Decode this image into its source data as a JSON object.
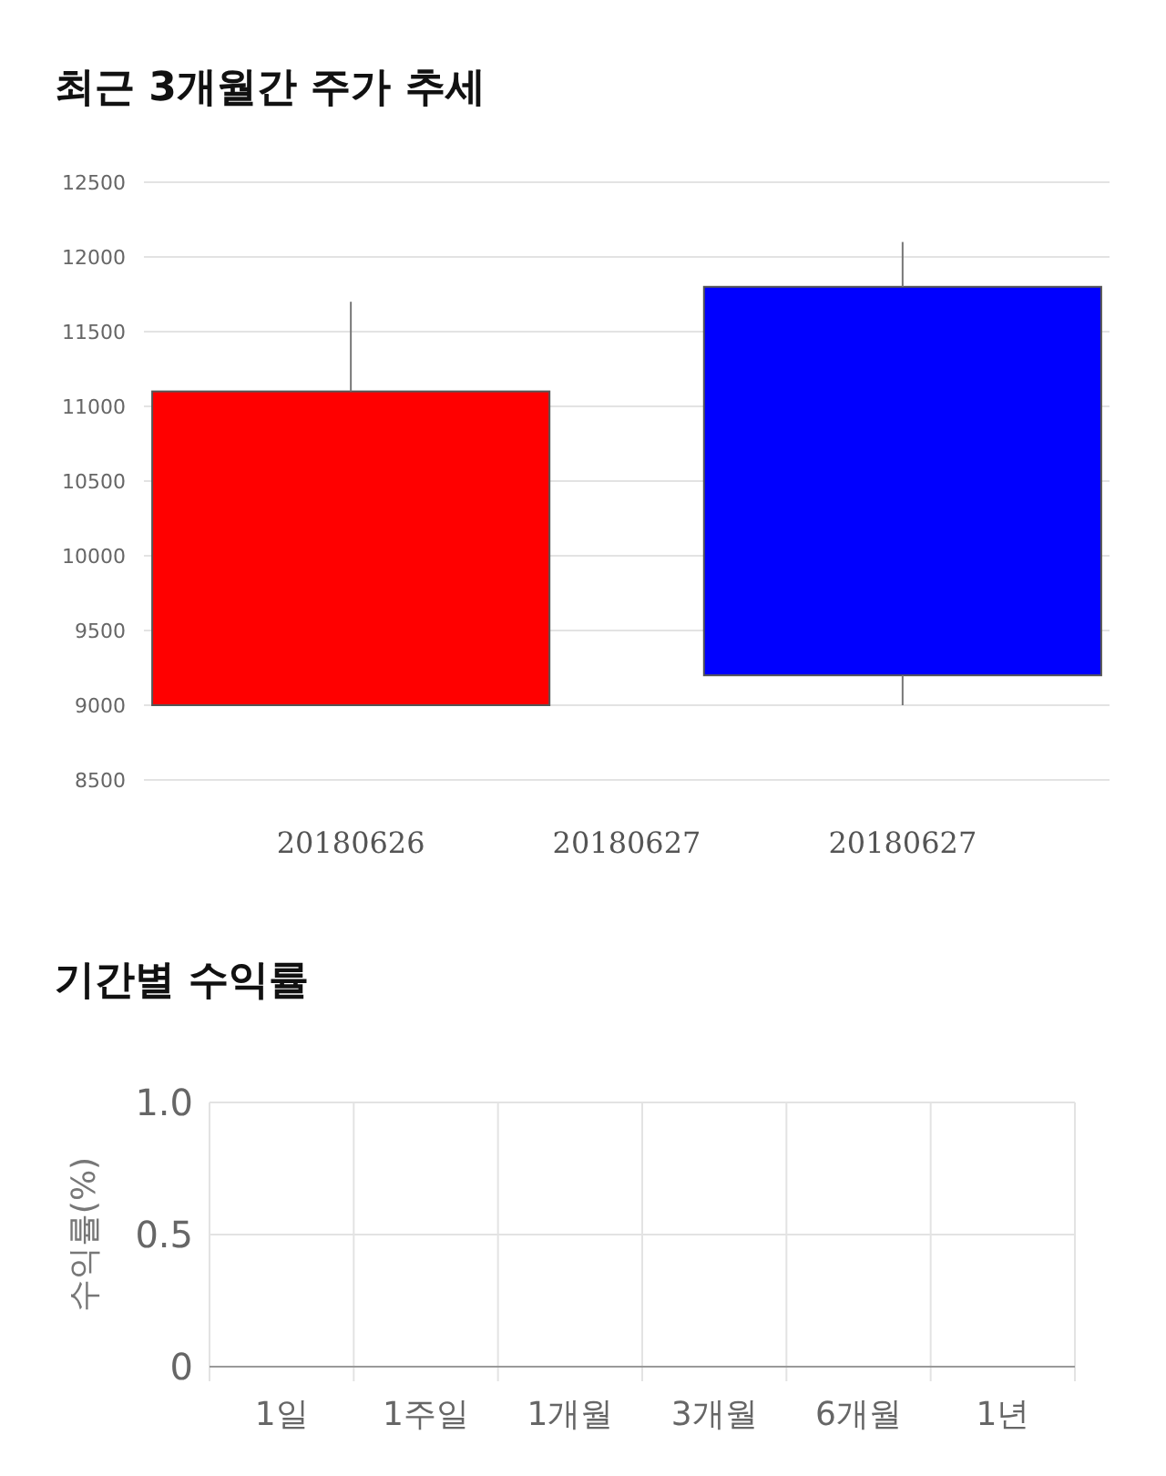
{
  "chart_data": [
    {
      "type": "candlestick",
      "title": "최근 3개월간 주가 추세",
      "x": [
        "2018-06-26",
        "2018-06-27"
      ],
      "ohlc": [
        [
          9000,
          11700,
          9000,
          11100
        ],
        [
          11800,
          12100,
          9000,
          9200
        ]
      ],
      "colors": [
        "#ff0000",
        "#0000ff"
      ],
      "xlim": [
        "2018-06-25T15:00",
        "2018-06-27T09:00"
      ],
      "xticks": [
        {
          "value": "2018-06-26",
          "label": "20180626"
        },
        {
          "value": "2018-06-26T12:00",
          "label": "20180627"
        },
        {
          "value": "2018-06-27",
          "label": "20180627"
        }
      ],
      "ylim": [
        8500,
        12500
      ],
      "yticks": [
        8500,
        9000,
        9500,
        10000,
        10500,
        11000,
        11500,
        12000,
        12500
      ],
      "grid": "y"
    },
    {
      "type": "bar",
      "title": "기간별 수익률",
      "ylabel": "수익률(%)",
      "categories": [
        "1일",
        "1주일",
        "1개월",
        "3개월",
        "6개월",
        "1년"
      ],
      "values": [
        null,
        null,
        null,
        null,
        null,
        null
      ],
      "ylim": [
        0,
        1
      ],
      "yticks": [
        0,
        0.5,
        {
          "value": 1,
          "label": "1.0"
        }
      ],
      "grid": true
    }
  ]
}
